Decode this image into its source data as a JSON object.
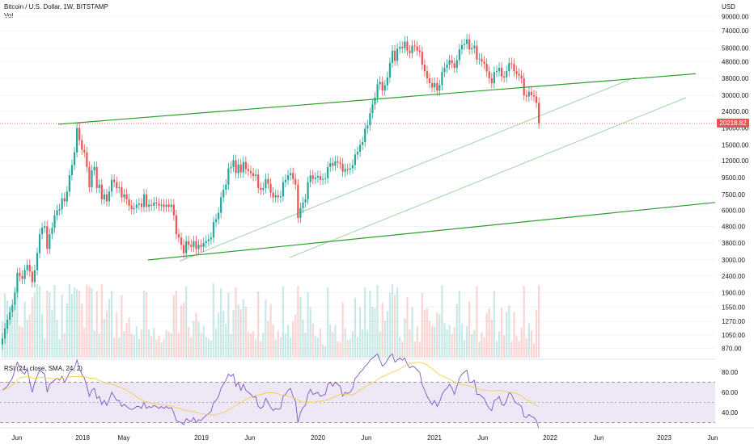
{
  "header": {
    "symbol_title": "Bitcoin / U.S. Dollar, 1W, BITSTAMP",
    "volume_label": "Vol"
  },
  "rsi_panel": {
    "label": "RSI (24, close, SMA, 24, 2)"
  },
  "colors": {
    "up": "#26a69a",
    "down": "#ef5350",
    "trendline": "#2e9e2e",
    "rsi_line": "#7e57c2",
    "rsi_ma": "#f5d04a",
    "rsi_band": "#ede7f6",
    "price_line": "#ef5350"
  },
  "chart_data": {
    "type": "candlestick",
    "price_scale": "log",
    "currency": "USD",
    "last_price": "20218.82",
    "y_ticks": [
      "90000.00",
      "74000.00",
      "58000.00",
      "48000.00",
      "38000.00",
      "30000.00",
      "24000.00",
      "19000.00",
      "15000.00",
      "12000.00",
      "9500.00",
      "7500.00",
      "6000.00",
      "4800.00",
      "3800.00",
      "3000.00",
      "2400.00",
      "1900.00",
      "1550.00",
      "1270.00",
      "1050.00",
      "870.00"
    ],
    "x_ticks": [
      "Jun",
      "2018",
      "May",
      "2019",
      "Jun",
      "2020",
      "Jun",
      "2021",
      "Jun",
      "2022",
      "Jun",
      "2023",
      "Jun"
    ],
    "weekly_closes": [
      1000,
      1150,
      1300,
      1450,
      1600,
      1900,
      2500,
      2400,
      2300,
      2600,
      2800,
      2550,
      2200,
      2600,
      3300,
      4300,
      4700,
      4800,
      3500,
      4300,
      4700,
      5600,
      6000,
      6100,
      7100,
      6800,
      7800,
      9800,
      11300,
      13500,
      19000,
      16000,
      14000,
      13500,
      11000,
      8300,
      10500,
      11000,
      8200,
      8600,
      7000,
      7500,
      6800,
      7800,
      9200,
      8900,
      8200,
      8300,
      7200,
      7500,
      7000,
      6400,
      6100,
      6200,
      6500,
      6600,
      6300,
      7500,
      6300,
      6500,
      6400,
      6700,
      6600,
      6400,
      6500,
      6300,
      6500,
      6300,
      6500,
      5600,
      4300,
      4100,
      3700,
      3300,
      3900,
      3700,
      3600,
      3900,
      3500,
      3700,
      3600,
      3800,
      3900,
      4000,
      4100,
      5100,
      5300,
      5800,
      7200,
      8000,
      8600,
      10800,
      11000,
      12100,
      10100,
      11400,
      10200,
      11800,
      10700,
      10400,
      10100,
      9700,
      9900,
      8200,
      8000,
      8200,
      9300,
      8700,
      7700,
      7200,
      7400,
      7200,
      7300,
      8900,
      9200,
      9800,
      10100,
      9300,
      8600,
      5400,
      6200,
      6700,
      7000,
      8900,
      9800,
      9300,
      9500,
      9700,
      9200,
      9300,
      9400,
      11000,
      11600,
      11200,
      11900,
      11700,
      11500,
      10300,
      10700,
      10600,
      10800,
      11300,
      13100,
      13600,
      15000,
      15600,
      18800,
      19700,
      23300,
      26400,
      29000,
      35000,
      36200,
      32000,
      34500,
      38500,
      47200,
      55900,
      48600,
      57500,
      59000,
      58000,
      63500,
      56000,
      54000,
      60000,
      59400,
      56000,
      55000,
      46000,
      42000,
      38000,
      35500,
      33500,
      35600,
      32000,
      34500,
      41500,
      44000,
      46000,
      49000,
      47000,
      44000,
      49000,
      57000,
      60500,
      61500,
      65500,
      57000,
      58000,
      60000,
      49500,
      50000,
      48000,
      46500,
      41800,
      38000,
      35500,
      41500,
      42000,
      44000,
      39000,
      38500,
      42000,
      47000,
      46500,
      42000,
      40500,
      39500,
      38000,
      30000,
      29500,
      31500,
      30000,
      29500,
      27000,
      20218.82
    ],
    "rsi_values": [
      62,
      64,
      66,
      70,
      74,
      82,
      90,
      85,
      80,
      78,
      84,
      70,
      60,
      70,
      76,
      82,
      80,
      78,
      60,
      68,
      70,
      72,
      74,
      72,
      76,
      70,
      74,
      80,
      82,
      84,
      92,
      84,
      78,
      74,
      66,
      56,
      62,
      64,
      54,
      56,
      48,
      52,
      47,
      53,
      60,
      56,
      52,
      52,
      46,
      48,
      46,
      44,
      43,
      44,
      46,
      46,
      44,
      50,
      44,
      46,
      45,
      47,
      46,
      44,
      46,
      44,
      46,
      44,
      45,
      40,
      32,
      31,
      30,
      28,
      34,
      32,
      31,
      35,
      30,
      33,
      32,
      35,
      37,
      39,
      41,
      50,
      52,
      56,
      64,
      68,
      72,
      78,
      76,
      78,
      66,
      70,
      62,
      68,
      62,
      60,
      58,
      55,
      56,
      46,
      44,
      46,
      54,
      50,
      45,
      42,
      44,
      43,
      44,
      56,
      58,
      62,
      64,
      56,
      51,
      30,
      40,
      45,
      47,
      58,
      63,
      58,
      59,
      60,
      56,
      57,
      58,
      68,
      70,
      66,
      70,
      68,
      66,
      56,
      60,
      59,
      60,
      64,
      74,
      76,
      80,
      82,
      86,
      88,
      92,
      94,
      96,
      98,
      92,
      86,
      88,
      92,
      96,
      98,
      90,
      92,
      94,
      92,
      94,
      88,
      84,
      86,
      85,
      82,
      80,
      68,
      62,
      56,
      52,
      48,
      52,
      46,
      50,
      58,
      62,
      64,
      68,
      64,
      58,
      66,
      74,
      78,
      80,
      82,
      70,
      70,
      72,
      58,
      58,
      56,
      54,
      48,
      44,
      42,
      52,
      53,
      56,
      48,
      47,
      52,
      60,
      58,
      52,
      49,
      48,
      46,
      36,
      35,
      38,
      36,
      35,
      32,
      24
    ]
  }
}
